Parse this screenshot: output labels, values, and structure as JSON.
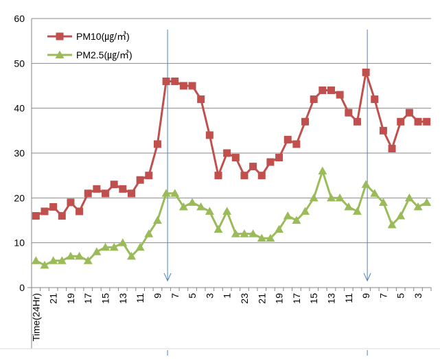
{
  "chart_data": {
    "type": "line",
    "ylim": [
      0,
      60
    ],
    "yticks": [
      0,
      10,
      20,
      30,
      40,
      50,
      60
    ],
    "grid": true,
    "legend": "top-left",
    "xlabel_first": "Time(24Hr)",
    "x_tick_labels": [
      "Time(24Hr)",
      "21",
      "19",
      "17",
      "15",
      "13",
      "11",
      "9",
      "7",
      "5",
      "3",
      "1",
      "23",
      "21",
      "19",
      "17",
      "15",
      "13",
      "11",
      "9",
      "7",
      "5",
      "3"
    ],
    "series": [
      {
        "name": "PM10(㎍/㎥)",
        "color": "#c0504d",
        "marker": "square",
        "values": [
          16,
          17,
          18,
          16,
          19,
          17,
          21,
          22,
          21,
          23,
          22,
          21,
          24,
          25,
          32,
          46,
          46,
          45,
          45,
          42,
          34,
          25,
          30,
          29,
          25,
          27,
          25,
          28,
          29,
          33,
          32,
          37,
          42,
          44,
          44,
          43,
          39,
          37,
          48,
          42,
          35,
          31,
          37,
          39,
          37,
          37
        ]
      },
      {
        "name": "PM2.5(㎍/㎥)",
        "color": "#9bbb59",
        "marker": "triangle",
        "values": [
          6,
          5,
          6,
          6,
          7,
          7,
          6,
          8,
          9,
          9,
          10,
          7,
          9,
          12,
          15,
          21,
          21,
          18,
          19,
          18,
          17,
          13,
          17,
          12,
          12,
          12,
          11,
          11,
          13,
          16,
          15,
          17,
          20,
          26,
          20,
          20,
          18,
          17,
          23,
          21,
          19,
          14,
          16,
          20,
          18,
          19
        ]
      }
    ],
    "annotations": [
      {
        "type": "arrow-down",
        "at_index": 15
      },
      {
        "type": "arrow-down",
        "at_index": 38
      }
    ]
  }
}
